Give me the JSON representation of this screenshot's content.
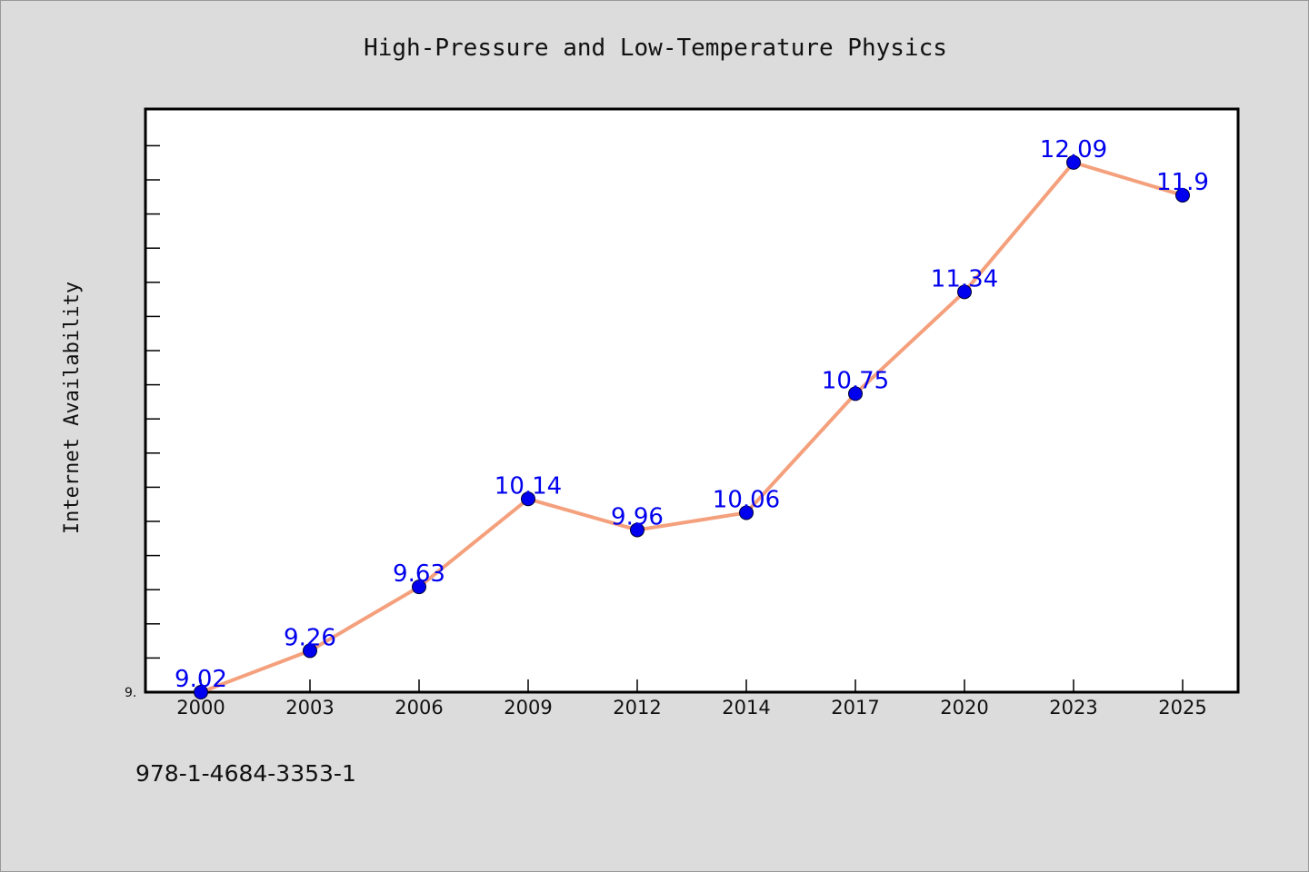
{
  "chart_data": {
    "type": "line",
    "title": "High-Pressure and Low-Temperature Physics",
    "xlabel": "",
    "ylabel": "Internet Availability",
    "categories": [
      "2000",
      "2003",
      "2006",
      "2009",
      "2012",
      "2014",
      "2017",
      "2020",
      "2023",
      "2025"
    ],
    "series": [
      {
        "values": [
          9.02,
          9.26,
          9.63,
          10.14,
          9.96,
          10.06,
          10.75,
          11.34,
          12.09,
          11.9
        ],
        "data_labels": [
          "9.02",
          "9.26",
          "9.63",
          "10.14",
          "9.96",
          "10.06",
          "10.75",
          "11.34",
          "12.09",
          "11.9"
        ]
      }
    ],
    "y_tick_label": "9.",
    "ylim": [
      9.02,
      12.4
    ],
    "grid": false,
    "legend": "none",
    "colors": {
      "line": "#f5a07c",
      "marker": "#0000ee",
      "label": "#0000ee",
      "plot_bg": "#ffffff",
      "page_bg": "#dcdcdc"
    }
  },
  "footer": {
    "isbn": "978-1-4684-3353-1"
  }
}
